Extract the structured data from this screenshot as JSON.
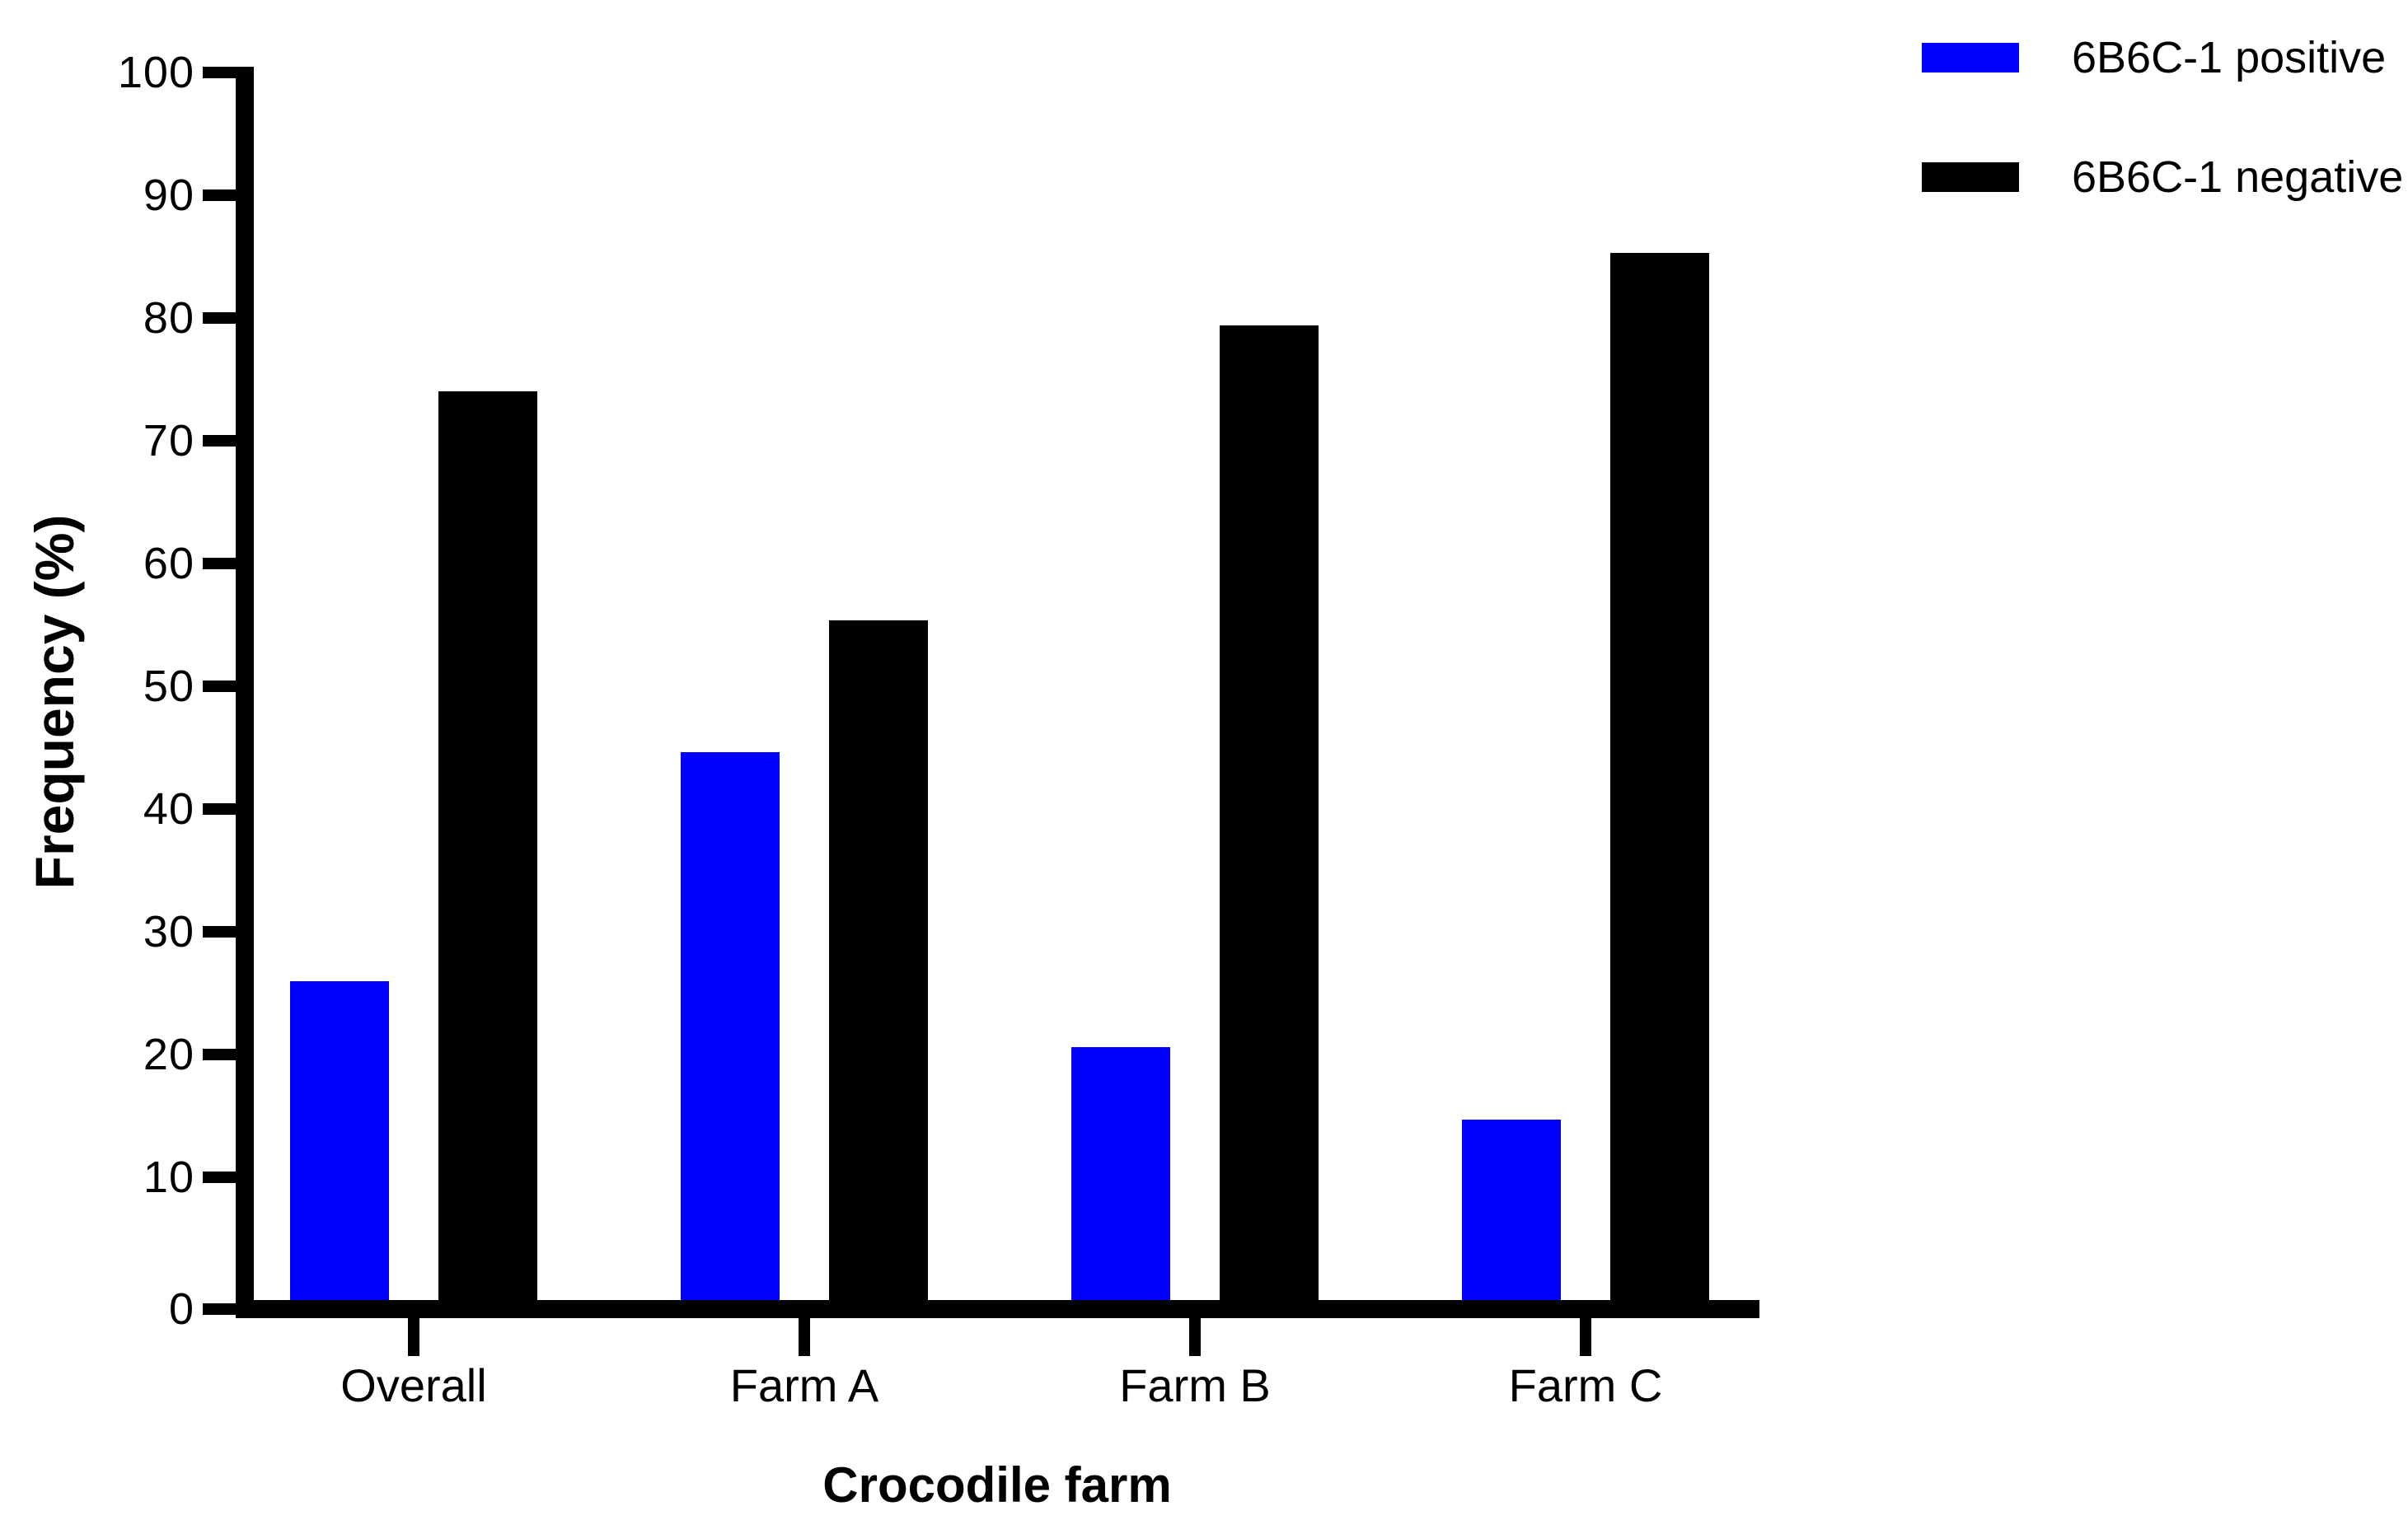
{
  "chart_data": {
    "type": "bar",
    "title": "",
    "xlabel": "Crocodile farm",
    "ylabel": "Frequency (%)",
    "categories": [
      "Overall",
      "Farm A",
      "Farm B",
      "Farm C"
    ],
    "series": [
      {
        "name": "6B6C-1 positive",
        "color": "#0000FF",
        "values": [
          26.0,
          44.6,
          20.6,
          14.7
        ]
      },
      {
        "name": "6B6C-1 negative",
        "color": "#000000",
        "values": [
          74.0,
          55.4,
          79.4,
          85.3
        ]
      }
    ],
    "ylim": [
      0,
      100
    ],
    "yticks": [
      0,
      10,
      20,
      30,
      40,
      50,
      60,
      70,
      80,
      90,
      100
    ],
    "grid": false,
    "legend_position": "top-right"
  }
}
